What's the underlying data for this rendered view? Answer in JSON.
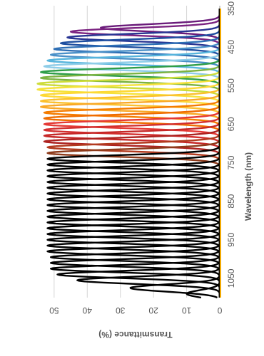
{
  "chart_data": {
    "type": "line",
    "orientation": "rotated-90-clockwise",
    "xlabel": "Wavelength (nm)",
    "ylabel": "Transmittance (%)",
    "xlim": [
      350,
      1100
    ],
    "ylim": [
      0,
      56
    ],
    "x_ticks": [
      350,
      450,
      550,
      650,
      750,
      850,
      950,
      1050
    ],
    "x_tick_labels": [
      "350",
      "450",
      "550",
      "650",
      "750",
      "850",
      "950",
      "1050"
    ],
    "y_ticks": [
      0,
      10,
      20,
      30,
      40,
      50
    ],
    "y_tick_labels": [
      "0",
      "10",
      "20",
      "30",
      "40",
      "50"
    ],
    "grid": "horizontal at y ticks",
    "legend": "none",
    "peak_fwhm_nm": 22,
    "series": [
      {
        "peak_nm": 400,
        "peak_pct": 36,
        "color": "#6a1b7a"
      },
      {
        "peak_nm": 410,
        "peak_pct": 45,
        "color": "#7b2381"
      },
      {
        "peak_nm": 425,
        "peak_pct": 46,
        "color": "#283593"
      },
      {
        "peak_nm": 440,
        "peak_pct": 48,
        "color": "#1e4fa0"
      },
      {
        "peak_nm": 455,
        "peak_pct": 50,
        "color": "#2e6fb5"
      },
      {
        "peak_nm": 470,
        "peak_pct": 51,
        "color": "#4a90c8"
      },
      {
        "peak_nm": 485,
        "peak_pct": 52,
        "color": "#56b4dc"
      },
      {
        "peak_nm": 500,
        "peak_pct": 53,
        "color": "#8ecde8"
      },
      {
        "peak_nm": 515,
        "peak_pct": 54,
        "color": "#2e9e48"
      },
      {
        "peak_nm": 530,
        "peak_pct": 54,
        "color": "#7cb342"
      },
      {
        "peak_nm": 545,
        "peak_pct": 55,
        "color": "#cddc39"
      },
      {
        "peak_nm": 560,
        "peak_pct": 55,
        "color": "#f5e23a"
      },
      {
        "peak_nm": 575,
        "peak_pct": 54,
        "color": "#fdd835"
      },
      {
        "peak_nm": 590,
        "peak_pct": 54,
        "color": "#fbc02d"
      },
      {
        "peak_nm": 605,
        "peak_pct": 54,
        "color": "#f9a825"
      },
      {
        "peak_nm": 620,
        "peak_pct": 53,
        "color": "#f57c00"
      },
      {
        "peak_nm": 635,
        "peak_pct": 53,
        "color": "#ef6c00"
      },
      {
        "peak_nm": 650,
        "peak_pct": 53,
        "color": "#e53935"
      },
      {
        "peak_nm": 665,
        "peak_pct": 53,
        "color": "#d32f2f"
      },
      {
        "peak_nm": 680,
        "peak_pct": 53,
        "color": "#c62828"
      },
      {
        "peak_nm": 695,
        "peak_pct": 53,
        "color": "#ad2220"
      },
      {
        "peak_nm": 710,
        "peak_pct": 52,
        "color": "#b23a1e"
      },
      {
        "peak_nm": 725,
        "peak_pct": 52,
        "color": "#8d3a1a"
      },
      {
        "peak_nm": 740,
        "peak_pct": 52,
        "color": "#000000"
      },
      {
        "peak_nm": 755,
        "peak_pct": 52,
        "color": "#000000"
      },
      {
        "peak_nm": 770,
        "peak_pct": 52,
        "color": "#000000"
      },
      {
        "peak_nm": 785,
        "peak_pct": 52,
        "color": "#000000"
      },
      {
        "peak_nm": 800,
        "peak_pct": 52,
        "color": "#000000"
      },
      {
        "peak_nm": 815,
        "peak_pct": 52,
        "color": "#000000"
      },
      {
        "peak_nm": 830,
        "peak_pct": 52,
        "color": "#000000"
      },
      {
        "peak_nm": 845,
        "peak_pct": 52,
        "color": "#000000"
      },
      {
        "peak_nm": 860,
        "peak_pct": 52,
        "color": "#000000"
      },
      {
        "peak_nm": 875,
        "peak_pct": 52,
        "color": "#000000"
      },
      {
        "peak_nm": 890,
        "peak_pct": 52,
        "color": "#000000"
      },
      {
        "peak_nm": 905,
        "peak_pct": 52,
        "color": "#000000"
      },
      {
        "peak_nm": 920,
        "peak_pct": 52,
        "color": "#000000"
      },
      {
        "peak_nm": 935,
        "peak_pct": 52,
        "color": "#000000"
      },
      {
        "peak_nm": 950,
        "peak_pct": 52,
        "color": "#000000"
      },
      {
        "peak_nm": 965,
        "peak_pct": 52,
        "color": "#000000"
      },
      {
        "peak_nm": 980,
        "peak_pct": 52,
        "color": "#000000"
      },
      {
        "peak_nm": 995,
        "peak_pct": 51,
        "color": "#000000"
      },
      {
        "peak_nm": 1010,
        "peak_pct": 51,
        "color": "#000000"
      },
      {
        "peak_nm": 1025,
        "peak_pct": 51,
        "color": "#000000"
      },
      {
        "peak_nm": 1040,
        "peak_pct": 49,
        "color": "#000000"
      },
      {
        "peak_nm": 1055,
        "peak_pct": 43,
        "color": "#000000"
      },
      {
        "peak_nm": 1075,
        "peak_pct": 27,
        "color": "#000000"
      },
      {
        "peak_nm": 1090,
        "peak_pct": 10,
        "color": "#000000"
      }
    ],
    "baseline_line_color": "#f2a900"
  }
}
